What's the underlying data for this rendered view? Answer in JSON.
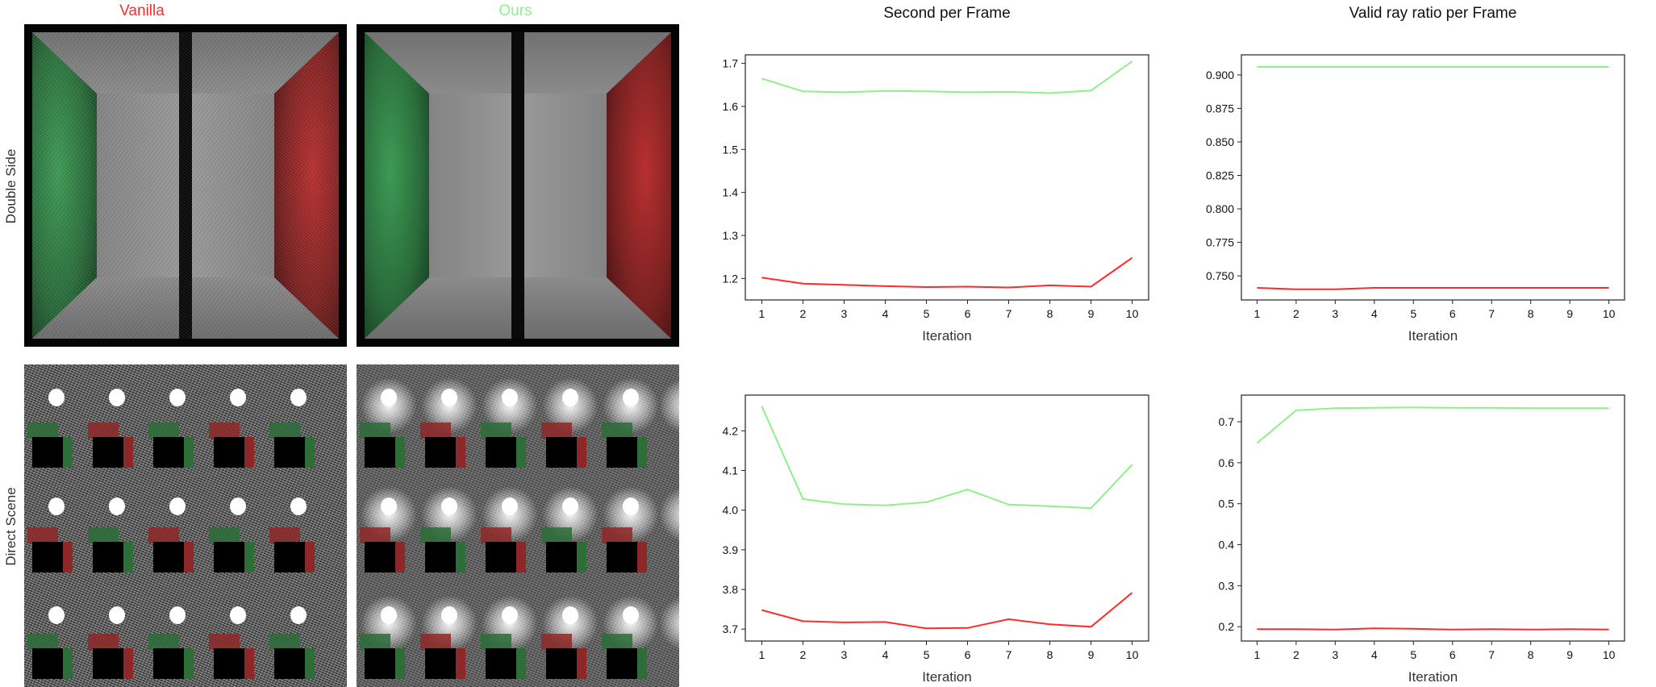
{
  "columns": {
    "vanilla": "Vanilla",
    "ours": "Ours"
  },
  "rows": {
    "double_side": "Double Side",
    "direct_scene": "Direct Scene"
  },
  "colors": {
    "vanilla": "#ff2a2a",
    "ours": "#8ef08a"
  },
  "chart_data": [
    {
      "type": "line",
      "title": "Second per Frame",
      "xlabel": "Iteration",
      "ylabel": "",
      "x": [
        1,
        2,
        3,
        4,
        5,
        6,
        7,
        8,
        9,
        10
      ],
      "ylim": [
        1.15,
        1.72
      ],
      "yticks": [
        1.2,
        1.3,
        1.4,
        1.5,
        1.6,
        1.7
      ],
      "ytick_labels": [
        "1.2",
        "1.3",
        "1.4",
        "1.5",
        "1.6",
        "1.7"
      ],
      "series": [
        {
          "values": [
            1.665,
            1.635,
            1.633,
            1.636,
            1.635,
            1.633,
            1.634,
            1.631,
            1.637,
            1.705
          ],
          "color": "#8ef08a"
        },
        {
          "values": [
            1.202,
            1.188,
            1.185,
            1.182,
            1.18,
            1.181,
            1.179,
            1.184,
            1.181,
            1.248
          ],
          "color": "#ff2a2a"
        }
      ]
    },
    {
      "type": "line",
      "title": "Valid ray ratio per Frame",
      "xlabel": "Iteration",
      "ylabel": "",
      "x": [
        1,
        2,
        3,
        4,
        5,
        6,
        7,
        8,
        9,
        10
      ],
      "ylim": [
        0.732,
        0.915
      ],
      "yticks": [
        0.75,
        0.775,
        0.8,
        0.825,
        0.85,
        0.875,
        0.9
      ],
      "ytick_labels": [
        "0.750",
        "0.775",
        "0.800",
        "0.825",
        "0.850",
        "0.875",
        "0.900"
      ],
      "series": [
        {
          "values": [
            0.906,
            0.906,
            0.906,
            0.906,
            0.906,
            0.906,
            0.906,
            0.906,
            0.906,
            0.906
          ],
          "color": "#8ef08a"
        },
        {
          "values": [
            0.741,
            0.74,
            0.74,
            0.741,
            0.741,
            0.741,
            0.741,
            0.741,
            0.741,
            0.741
          ],
          "color": "#ff2a2a"
        }
      ]
    },
    {
      "type": "line",
      "title": "",
      "xlabel": "Iteration",
      "ylabel": "",
      "x": [
        1,
        2,
        3,
        4,
        5,
        6,
        7,
        8,
        9,
        10
      ],
      "ylim": [
        3.67,
        4.29
      ],
      "yticks": [
        3.7,
        3.8,
        3.9,
        4.0,
        4.1,
        4.2
      ],
      "ytick_labels": [
        "3.7",
        "3.8",
        "3.9",
        "4.0",
        "4.1",
        "4.2"
      ],
      "series": [
        {
          "values": [
            4.262,
            4.028,
            4.015,
            4.012,
            4.02,
            4.052,
            4.014,
            4.01,
            4.005,
            4.115
          ],
          "color": "#8ef08a"
        },
        {
          "values": [
            3.748,
            3.72,
            3.717,
            3.718,
            3.702,
            3.703,
            3.725,
            3.712,
            3.706,
            3.792
          ],
          "color": "#ff2a2a"
        }
      ]
    },
    {
      "type": "line",
      "title": "",
      "xlabel": "Iteration",
      "ylabel": "",
      "x": [
        1,
        2,
        3,
        4,
        5,
        6,
        7,
        8,
        9,
        10
      ],
      "ylim": [
        0.165,
        0.765
      ],
      "yticks": [
        0.2,
        0.3,
        0.4,
        0.5,
        0.6,
        0.7
      ],
      "ytick_labels": [
        "0.2",
        "0.3",
        "0.4",
        "0.5",
        "0.6",
        "0.7"
      ],
      "series": [
        {
          "values": [
            0.648,
            0.728,
            0.733,
            0.734,
            0.735,
            0.734,
            0.734,
            0.733,
            0.733,
            0.733
          ],
          "color": "#8ef08a"
        },
        {
          "values": [
            0.194,
            0.194,
            0.193,
            0.196,
            0.195,
            0.193,
            0.194,
            0.193,
            0.194,
            0.193
          ],
          "color": "#ff2a2a"
        }
      ]
    }
  ]
}
